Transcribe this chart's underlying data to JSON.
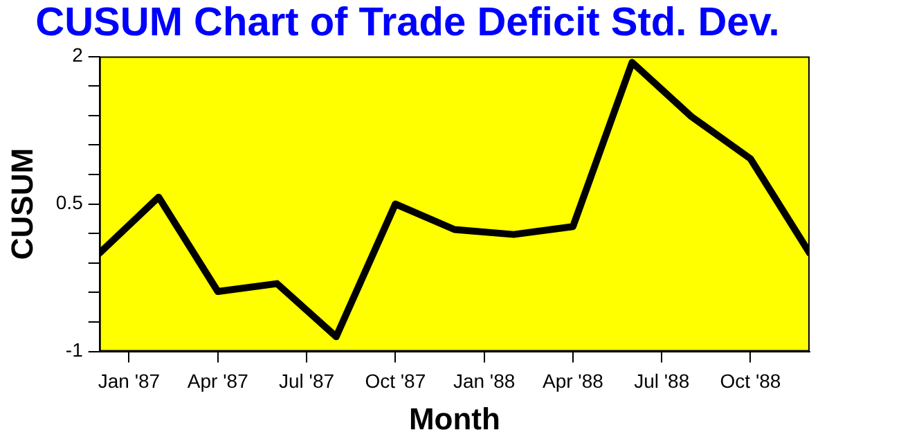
{
  "chart_data": {
    "type": "line",
    "title": "CUSUM Chart of Trade Deficit Std. Dev.",
    "xlabel": "Month",
    "ylabel": "CUSUM",
    "x": [
      "1986-12",
      "1987-02",
      "1987-04",
      "1987-06",
      "1987-08",
      "1987-10",
      "1987-12",
      "1988-02",
      "1988-04",
      "1988-06",
      "1988-08",
      "1988-10",
      "1988-12"
    ],
    "series": [
      {
        "color": "#000000",
        "values": [
          0.0,
          0.57,
          -0.39,
          -0.31,
          -0.85,
          0.5,
          0.24,
          0.19,
          0.27,
          1.94,
          1.39,
          0.96,
          0.0
        ]
      }
    ],
    "xlim": [
      "1986-12",
      "1988-12"
    ],
    "xticks": [
      {
        "value": "1987-01",
        "label": "Jan '87"
      },
      {
        "value": "1987-04",
        "label": "Apr '87"
      },
      {
        "value": "1987-07",
        "label": "Jul '87"
      },
      {
        "value": "1987-10",
        "label": "Oct '87"
      },
      {
        "value": "1988-01",
        "label": "Jan '88"
      },
      {
        "value": "1988-04",
        "label": "Apr '88"
      },
      {
        "value": "1988-07",
        "label": "Jul '88"
      },
      {
        "value": "1988-10",
        "label": "Oct '88"
      }
    ],
    "ylim": [
      -1,
      2
    ],
    "yticks": [
      -1,
      {
        "value": -0.7,
        "label": null
      },
      {
        "value": -0.4,
        "label": null
      },
      {
        "value": -0.1,
        "label": null
      },
      {
        "value": 0.2,
        "label": null
      },
      0.5,
      {
        "value": 0.8,
        "label": null
      },
      {
        "value": 1.1,
        "label": null
      },
      {
        "value": 1.4,
        "label": null
      },
      {
        "value": 1.7,
        "label": null
      },
      2
    ],
    "grid": false,
    "legend": false,
    "marker": "none",
    "line_style": "solid"
  }
}
